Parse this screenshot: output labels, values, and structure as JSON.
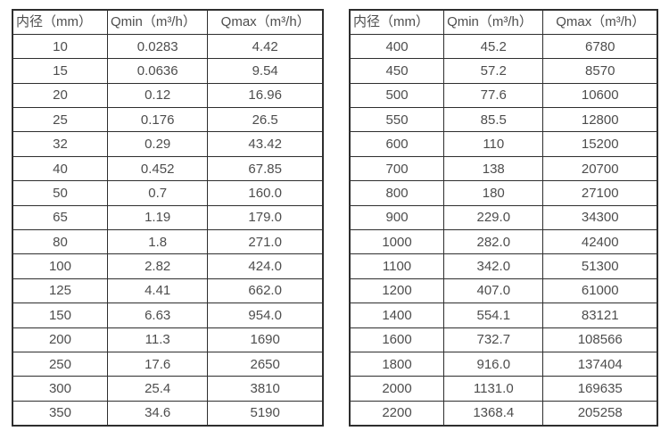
{
  "colors": {
    "background": "#ffffff",
    "border": "#2e2e2e",
    "text": "#4d4d4d"
  },
  "tables": [
    {
      "name": "diameter-flow-table-small",
      "headers": [
        "内径（mm）",
        "Qmin（m³/h）",
        "Qmax（m³/h）"
      ],
      "rows": [
        [
          "10",
          "0.0283",
          "4.42"
        ],
        [
          "15",
          "0.0636",
          "9.54"
        ],
        [
          "20",
          "0.12",
          "16.96"
        ],
        [
          "25",
          "0.176",
          "26.5"
        ],
        [
          "32",
          "0.29",
          "43.42"
        ],
        [
          "40",
          "0.452",
          "67.85"
        ],
        [
          "50",
          "0.7",
          "160.0"
        ],
        [
          "65",
          "1.19",
          "179.0"
        ],
        [
          "80",
          "1.8",
          "271.0"
        ],
        [
          "100",
          "2.82",
          "424.0"
        ],
        [
          "125",
          "4.41",
          "662.0"
        ],
        [
          "150",
          "6.63",
          "954.0"
        ],
        [
          "200",
          "11.3",
          "1690"
        ],
        [
          "250",
          "17.6",
          "2650"
        ],
        [
          "300",
          "25.4",
          "3810"
        ],
        [
          "350",
          "34.6",
          "5190"
        ]
      ]
    },
    {
      "name": "diameter-flow-table-large",
      "headers": [
        "内径（mm）",
        "Qmin（m³/h）",
        "Qmax（m³/h）"
      ],
      "rows": [
        [
          "400",
          "45.2",
          "6780"
        ],
        [
          "450",
          "57.2",
          "8570"
        ],
        [
          "500",
          "77.6",
          "10600"
        ],
        [
          "550",
          "85.5",
          "12800"
        ],
        [
          "600",
          "110",
          "15200"
        ],
        [
          "700",
          "138",
          "20700"
        ],
        [
          "800",
          "180",
          "27100"
        ],
        [
          "900",
          "229.0",
          "34300"
        ],
        [
          "1000",
          "282.0",
          "42400"
        ],
        [
          "1100",
          "342.0",
          "51300"
        ],
        [
          "1200",
          "407.0",
          "61000"
        ],
        [
          "1400",
          "554.1",
          "83121"
        ],
        [
          "1600",
          "732.7",
          "108566"
        ],
        [
          "1800",
          "916.0",
          "137404"
        ],
        [
          "2000",
          "1131.0",
          "169635"
        ],
        [
          "2200",
          "1368.4",
          "205258"
        ]
      ]
    }
  ]
}
